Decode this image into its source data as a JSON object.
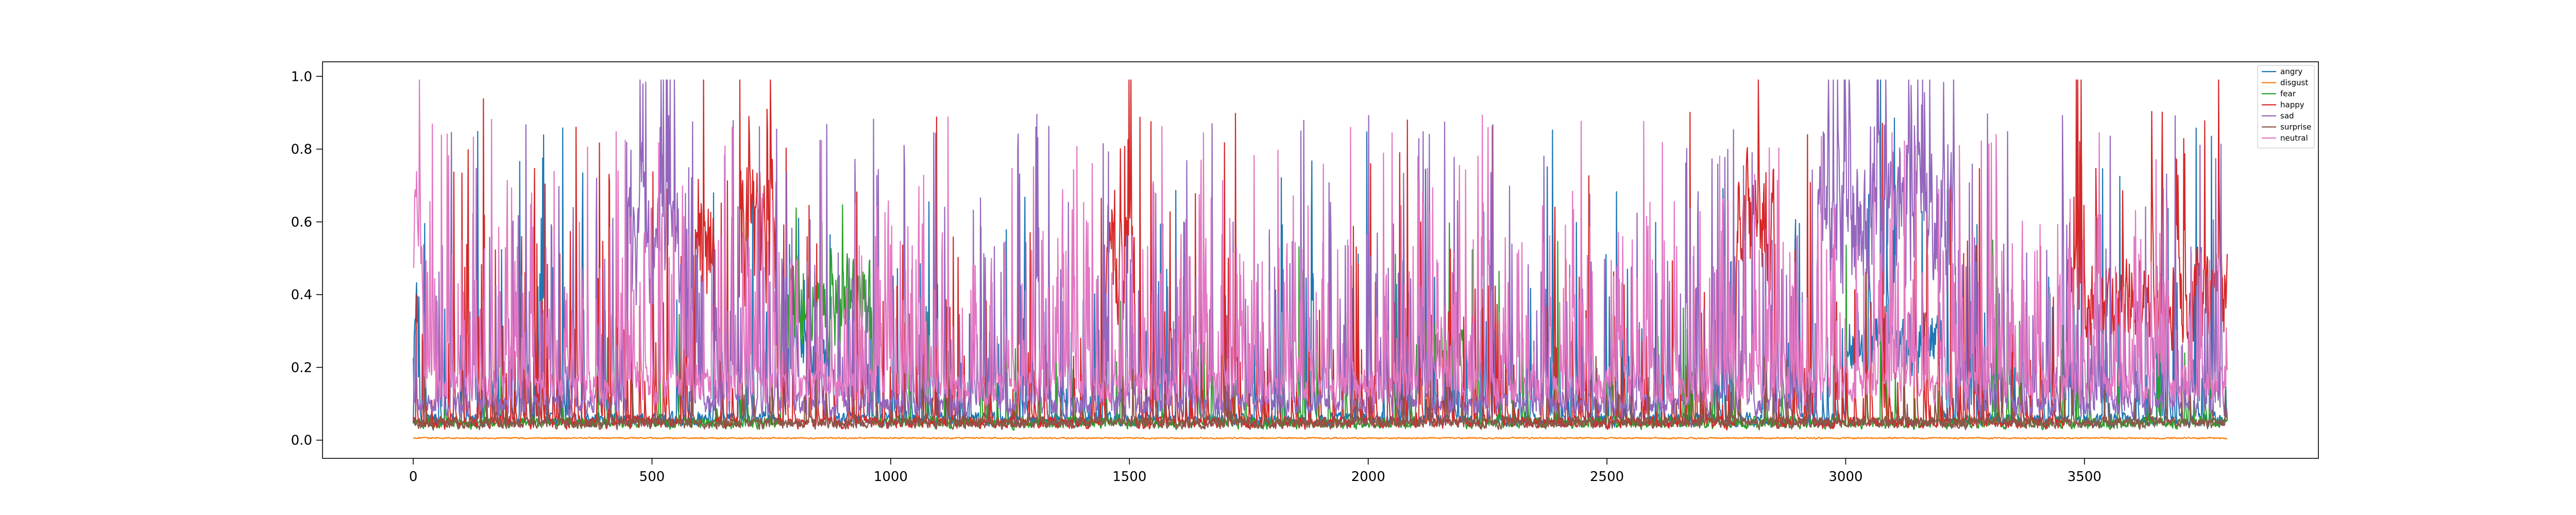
{
  "chart_data": {
    "type": "line",
    "title": "",
    "xlabel": "",
    "ylabel": "",
    "xlim": [
      -190,
      3990
    ],
    "ylim": [
      -0.05,
      1.04
    ],
    "x_count": 3800,
    "x_start": 0,
    "xticks": [
      0,
      500,
      1000,
      1500,
      2000,
      2500,
      3000,
      3500
    ],
    "yticks": [
      0.0,
      0.2,
      0.4,
      0.6,
      0.8,
      1.0
    ],
    "xtick_labels": [
      "0",
      "500",
      "1000",
      "1500",
      "2000",
      "2500",
      "3000",
      "3500"
    ],
    "ytick_labels": [
      "0.0",
      "0.2",
      "0.4",
      "0.6",
      "0.8",
      "1.0"
    ],
    "grid": false,
    "legend_position": "top-right",
    "series": [
      {
        "name": "angry",
        "color": "#1f77b4"
      },
      {
        "name": "disgust",
        "color": "#ff7f0e"
      },
      {
        "name": "fear",
        "color": "#2ca02c"
      },
      {
        "name": "happy",
        "color": "#d62728"
      },
      {
        "name": "sad",
        "color": "#9467bd"
      },
      {
        "name": "surprise",
        "color": "#8c564b"
      },
      {
        "name": "neutral",
        "color": "#e377c2"
      }
    ],
    "series_profile": {
      "angry": {
        "base": 0.06,
        "spike_p": 0.05,
        "spike_max": 0.8,
        "segments": [
          [
            2,
            10,
            0.35
          ],
          [
            780,
            880,
            0.25
          ],
          [
            3000,
            3200,
            0.28
          ]
        ]
      },
      "disgust": {
        "base": 0.006,
        "spike_p": 0.0,
        "spike_max": 0.02,
        "segments": []
      },
      "fear": {
        "base": 0.05,
        "spike_p": 0.02,
        "spike_max": 0.55,
        "segments": [
          [
            770,
            960,
            0.4
          ],
          [
            2100,
            2200,
            0.25
          ]
        ]
      },
      "happy": {
        "base": 0.05,
        "spike_p": 0.06,
        "spike_max": 0.9,
        "segments": [
          [
            590,
            630,
            0.55
          ],
          [
            680,
            760,
            0.6
          ],
          [
            1450,
            1510,
            0.55
          ],
          [
            2770,
            2850,
            0.6
          ],
          [
            3460,
            3800,
            0.4
          ]
        ]
      },
      "sad": {
        "base": 0.1,
        "spike_p": 0.1,
        "spike_max": 0.8,
        "segments": [
          [
            450,
            560,
            0.55
          ],
          [
            2940,
            3230,
            0.62
          ]
        ]
      },
      "surprise": {
        "base": 0.05,
        "spike_p": 0.02,
        "spike_max": 0.2,
        "segments": []
      },
      "neutral": {
        "base": 0.15,
        "spike_p": 0.12,
        "spike_max": 0.75,
        "segments": [
          [
            0,
            20,
            0.55
          ]
        ]
      }
    }
  }
}
